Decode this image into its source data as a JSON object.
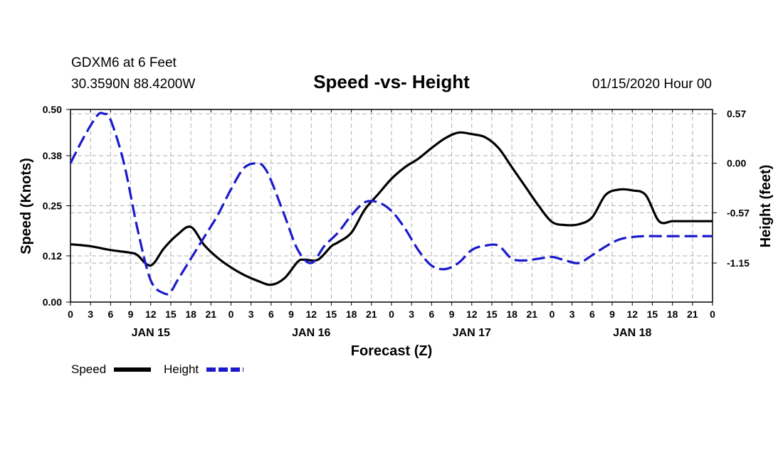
{
  "header": {
    "station": "GDXM6 at 6 Feet",
    "location": "30.3590N 88.4200W",
    "title": "Speed -vs- Height",
    "datetime": "01/15/2020 Hour 00"
  },
  "legend": {
    "speed_label": "Speed",
    "height_label": "Height"
  },
  "colors": {
    "speed": "#000000",
    "height": "#1a1acc",
    "grid": "#b0b0b0"
  },
  "chart_data": {
    "type": "line",
    "title": "Speed -vs- Height",
    "xlabel": "Forecast (Z)",
    "ylabel": "Speed (Knots)",
    "y2label": "Height (feet)",
    "x_hours_range": [
      0,
      96
    ],
    "ylim": [
      0,
      0.5
    ],
    "y2lim": [
      -1.6,
      0.62
    ],
    "grid": true,
    "legend_position": "bottom-left",
    "yticks": [
      "0.00",
      "0.12",
      "0.25",
      "0.38",
      "0.50"
    ],
    "y2ticks": [
      "0.57",
      "0.00",
      "-0.57",
      "-1.15"
    ],
    "xtick_labels": [
      "0",
      "3",
      "6",
      "9",
      "12",
      "15",
      "18",
      "21",
      "0",
      "3",
      "6",
      "9",
      "12",
      "15",
      "18",
      "21",
      "0",
      "3",
      "6",
      "9",
      "12",
      "15",
      "18",
      "21",
      "0",
      "3",
      "6",
      "9",
      "12",
      "15",
      "18",
      "21",
      "0"
    ],
    "day_labels": [
      {
        "label": "JAN 15",
        "hour": 12
      },
      {
        "label": "JAN 16",
        "hour": 36
      },
      {
        "label": "JAN 17",
        "hour": 60
      },
      {
        "label": "JAN 18",
        "hour": 84
      }
    ],
    "series": [
      {
        "name": "Speed",
        "axis": "left",
        "x": [
          0,
          3,
          6,
          9,
          10,
          12,
          14,
          16,
          18,
          20,
          22,
          24,
          26,
          28,
          30,
          32,
          34,
          35,
          37,
          39,
          40,
          42,
          44,
          46,
          48,
          50,
          52,
          54,
          56,
          58,
          60,
          62,
          64,
          66,
          68,
          70,
          72,
          74,
          76,
          78,
          80,
          82,
          84,
          86,
          88,
          90,
          92,
          94,
          96
        ],
        "values": [
          0.15,
          0.145,
          0.135,
          0.128,
          0.122,
          0.095,
          0.14,
          0.175,
          0.195,
          0.148,
          0.115,
          0.09,
          0.07,
          0.055,
          0.045,
          0.062,
          0.105,
          0.11,
          0.11,
          0.145,
          0.155,
          0.18,
          0.24,
          0.28,
          0.32,
          0.35,
          0.372,
          0.4,
          0.425,
          0.44,
          0.436,
          0.428,
          0.4,
          0.35,
          0.3,
          0.25,
          0.208,
          0.2,
          0.202,
          0.22,
          0.278,
          0.292,
          0.29,
          0.278,
          0.21,
          0.21,
          0.21,
          0.21,
          0.21
        ]
      },
      {
        "name": "Height",
        "axis": "right",
        "x": [
          0,
          2,
          4,
          5,
          6,
          8,
          10,
          12,
          14,
          15,
          16,
          18,
          20,
          22,
          24,
          26,
          28,
          29,
          30,
          32,
          34,
          36,
          38,
          40,
          42,
          44,
          46,
          48,
          50,
          52,
          54,
          56,
          58,
          60,
          62,
          64,
          66,
          68,
          70,
          72,
          74,
          76,
          78,
          80,
          82,
          84,
          86,
          88,
          90,
          92,
          94,
          96
        ],
        "values": [
          0.0,
          0.3,
          0.55,
          0.57,
          0.5,
          0.0,
          -0.75,
          -1.35,
          -1.5,
          -1.48,
          -1.35,
          -1.1,
          -0.85,
          -0.6,
          -0.3,
          -0.05,
          0.0,
          -0.05,
          -0.2,
          -0.6,
          -1.0,
          -1.15,
          -0.95,
          -0.8,
          -0.6,
          -0.45,
          -0.45,
          -0.55,
          -0.75,
          -1.0,
          -1.18,
          -1.22,
          -1.15,
          -1.0,
          -0.95,
          -0.95,
          -1.1,
          -1.12,
          -1.1,
          -1.08,
          -1.12,
          -1.15,
          -1.06,
          -0.96,
          -0.88,
          -0.85,
          -0.84,
          -0.84,
          -0.84,
          -0.84,
          -0.84,
          -0.84
        ]
      }
    ]
  }
}
